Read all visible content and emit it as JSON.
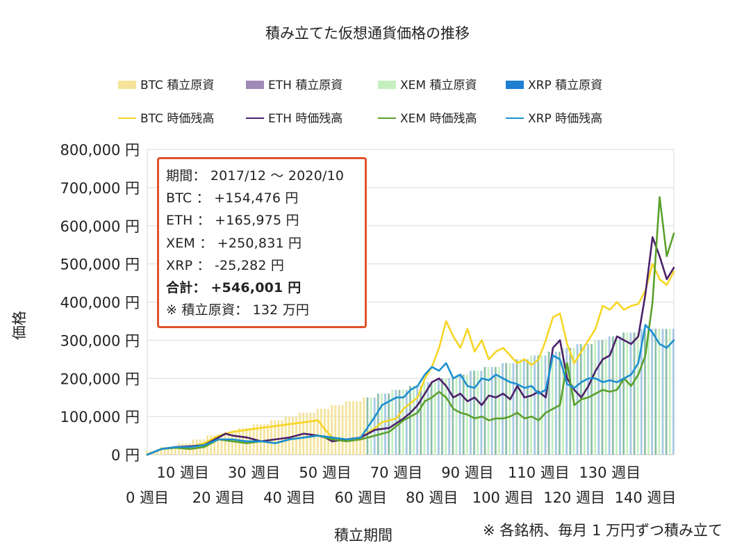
{
  "chart_data": {
    "type": "bar+line",
    "title": "積み立てた仮想通貨価格の推移",
    "ylabel": "価格",
    "xlabel": "積立期間",
    "footnote": "※ 各銘柄、毎月 1 万円ずつ積み立て",
    "ylim": [
      0,
      800000
    ],
    "y_ticks": [
      "800,000 円",
      "700,000 円",
      "600,000 円",
      "500,000 円",
      "400,000 円",
      "300,000 円",
      "200,000 円",
      "100,000 円",
      "0 円"
    ],
    "y_tick_values": [
      800000,
      700000,
      600000,
      500000,
      400000,
      300000,
      200000,
      100000,
      0
    ],
    "x_ticks_row1": [
      "10 週目",
      "30 週目",
      "50 週目",
      "70 週目",
      "90 週目",
      "110 週目",
      "130 週目"
    ],
    "x_ticks_row2": [
      "0 週目",
      "20 週目",
      "40 週目",
      "60 週目",
      "80 週目",
      "100 週目",
      "120 週目",
      "140 週目"
    ],
    "x_max_week": 148,
    "legend": [
      {
        "label": "BTC  積立原資",
        "kind": "bar",
        "color": "#f5e39a"
      },
      {
        "label": "ETH  積立原資",
        "kind": "bar",
        "color": "#a08ab8"
      },
      {
        "label": "XEM  積立原資",
        "kind": "bar",
        "color": "#c6efc0"
      },
      {
        "label": "XRP  積立原資",
        "kind": "bar",
        "color": "#1f7fd1"
      },
      {
        "label": "BTC  時価残高",
        "kind": "line",
        "color": "#f7d524"
      },
      {
        "label": "ETH  時価残高",
        "kind": "line",
        "color": "#4b2068"
      },
      {
        "label": "XEM  時価残高",
        "kind": "line",
        "color": "#5aa02c"
      },
      {
        "label": "XRP  時価残高",
        "kind": "line",
        "color": "#1c8fd0"
      }
    ],
    "principal_bars": {
      "note": "monthly investment of 10,000 per coin; step value at each week",
      "weeks": [
        0,
        4,
        9,
        13,
        17,
        22,
        26,
        30,
        35,
        39,
        43,
        48,
        52,
        56,
        61,
        65,
        69,
        74,
        78,
        82,
        87,
        91,
        95,
        100,
        104,
        108,
        113,
        117,
        121,
        126,
        130,
        134,
        139,
        143,
        147
      ],
      "values": [
        10000,
        20000,
        30000,
        40000,
        50000,
        60000,
        70000,
        80000,
        90000,
        100000,
        110000,
        120000,
        130000,
        140000,
        150000,
        160000,
        170000,
        180000,
        190000,
        200000,
        210000,
        220000,
        230000,
        240000,
        250000,
        260000,
        270000,
        280000,
        290000,
        300000,
        310000,
        320000,
        330000,
        330000,
        330000
      ]
    },
    "series": [
      {
        "name": "BTC  時価残高",
        "color": "#f7d524",
        "x": [
          0,
          4,
          8,
          12,
          16,
          20,
          24,
          28,
          32,
          36,
          40,
          44,
          48,
          50,
          52,
          56,
          60,
          64,
          66,
          68,
          70,
          72,
          76,
          78,
          80,
          82,
          84,
          86,
          88,
          90,
          92,
          94,
          96,
          98,
          100,
          102,
          104,
          106,
          108,
          110,
          112,
          114,
          116,
          118,
          120,
          122,
          124,
          126,
          128,
          130,
          132,
          134,
          136,
          138,
          140,
          142,
          144,
          146,
          148
        ],
        "y": [
          0,
          15000,
          20000,
          20000,
          30000,
          50000,
          60000,
          65000,
          70000,
          75000,
          80000,
          85000,
          90000,
          65000,
          45000,
          40000,
          45000,
          70000,
          85000,
          90000,
          95000,
          120000,
          150000,
          200000,
          230000,
          280000,
          350000,
          310000,
          280000,
          330000,
          270000,
          300000,
          250000,
          270000,
          280000,
          260000,
          240000,
          250000,
          235000,
          250000,
          300000,
          360000,
          370000,
          290000,
          240000,
          270000,
          300000,
          330000,
          390000,
          380000,
          400000,
          380000,
          390000,
          395000,
          430000,
          500000,
          460000,
          445000,
          480000
        ]
      },
      {
        "name": "ETH  時価残高",
        "color": "#4b2068",
        "x": [
          0,
          4,
          8,
          12,
          16,
          20,
          22,
          24,
          28,
          32,
          36,
          40,
          44,
          48,
          50,
          52,
          56,
          60,
          64,
          68,
          72,
          74,
          76,
          78,
          80,
          82,
          84,
          86,
          88,
          90,
          92,
          94,
          96,
          98,
          100,
          102,
          104,
          106,
          108,
          110,
          112,
          114,
          116,
          118,
          120,
          122,
          124,
          126,
          128,
          130,
          132,
          134,
          136,
          138,
          140,
          142,
          144,
          146,
          148
        ],
        "y": [
          0,
          15000,
          20000,
          22000,
          25000,
          45000,
          55000,
          50000,
          45000,
          35000,
          40000,
          45000,
          55000,
          50000,
          45000,
          35000,
          40000,
          45000,
          65000,
          70000,
          95000,
          110000,
          130000,
          160000,
          190000,
          200000,
          180000,
          150000,
          160000,
          140000,
          150000,
          130000,
          155000,
          150000,
          160000,
          145000,
          180000,
          150000,
          155000,
          165000,
          150000,
          280000,
          300000,
          200000,
          170000,
          150000,
          180000,
          220000,
          250000,
          260000,
          310000,
          300000,
          290000,
          310000,
          420000,
          570000,
          520000,
          460000,
          490000
        ]
      },
      {
        "name": "XEM  時価残高",
        "color": "#5aa02c",
        "x": [
          0,
          4,
          8,
          12,
          16,
          20,
          24,
          28,
          32,
          36,
          40,
          44,
          48,
          52,
          56,
          60,
          64,
          68,
          72,
          74,
          76,
          78,
          80,
          82,
          84,
          86,
          88,
          90,
          92,
          94,
          96,
          98,
          100,
          102,
          104,
          106,
          108,
          110,
          112,
          114,
          116,
          118,
          120,
          122,
          124,
          126,
          128,
          130,
          132,
          134,
          136,
          138,
          140,
          142,
          144,
          146,
          148
        ],
        "y": [
          0,
          15000,
          18000,
          15000,
          20000,
          40000,
          35000,
          30000,
          35000,
          30000,
          40000,
          45000,
          50000,
          40000,
          35000,
          40000,
          50000,
          60000,
          90000,
          100000,
          110000,
          140000,
          150000,
          165000,
          150000,
          120000,
          110000,
          105000,
          95000,
          100000,
          90000,
          95000,
          95000,
          100000,
          110000,
          95000,
          100000,
          90000,
          110000,
          120000,
          130000,
          240000,
          130000,
          145000,
          150000,
          160000,
          170000,
          165000,
          170000,
          200000,
          180000,
          210000,
          260000,
          400000,
          675000,
          520000,
          580000
        ]
      },
      {
        "name": "XRP  時価残高",
        "color": "#1c8fd0",
        "x": [
          0,
          4,
          8,
          12,
          16,
          20,
          24,
          28,
          32,
          36,
          40,
          44,
          48,
          52,
          56,
          60,
          64,
          66,
          68,
          70,
          72,
          74,
          76,
          78,
          80,
          82,
          84,
          86,
          88,
          90,
          92,
          94,
          96,
          98,
          100,
          102,
          104,
          106,
          108,
          110,
          112,
          114,
          116,
          118,
          120,
          122,
          124,
          126,
          128,
          130,
          132,
          134,
          136,
          138,
          140,
          142,
          144,
          146,
          148
        ],
        "y": [
          0,
          15000,
          20000,
          20000,
          25000,
          40000,
          40000,
          35000,
          35000,
          30000,
          40000,
          45000,
          50000,
          45000,
          40000,
          45000,
          100000,
          130000,
          140000,
          150000,
          150000,
          170000,
          180000,
          210000,
          230000,
          220000,
          240000,
          200000,
          210000,
          180000,
          175000,
          200000,
          195000,
          210000,
          200000,
          190000,
          185000,
          175000,
          180000,
          160000,
          170000,
          260000,
          250000,
          185000,
          175000,
          190000,
          200000,
          200000,
          190000,
          195000,
          190000,
          200000,
          210000,
          240000,
          340000,
          320000,
          290000,
          280000,
          300000
        ]
      }
    ]
  },
  "info": {
    "period": "期間：  2017/12 ～ 2020/10",
    "btc": "BTC  ：  +154,476 円",
    "eth": "ETH  ：  +165,975 円",
    "xem": "XEM  ：  +250,831 円",
    "xrp": "XRP  ：  -25,282 円",
    "total": "合計：  +546,001 円",
    "principal": "※ 積立原資：  132 万円"
  }
}
